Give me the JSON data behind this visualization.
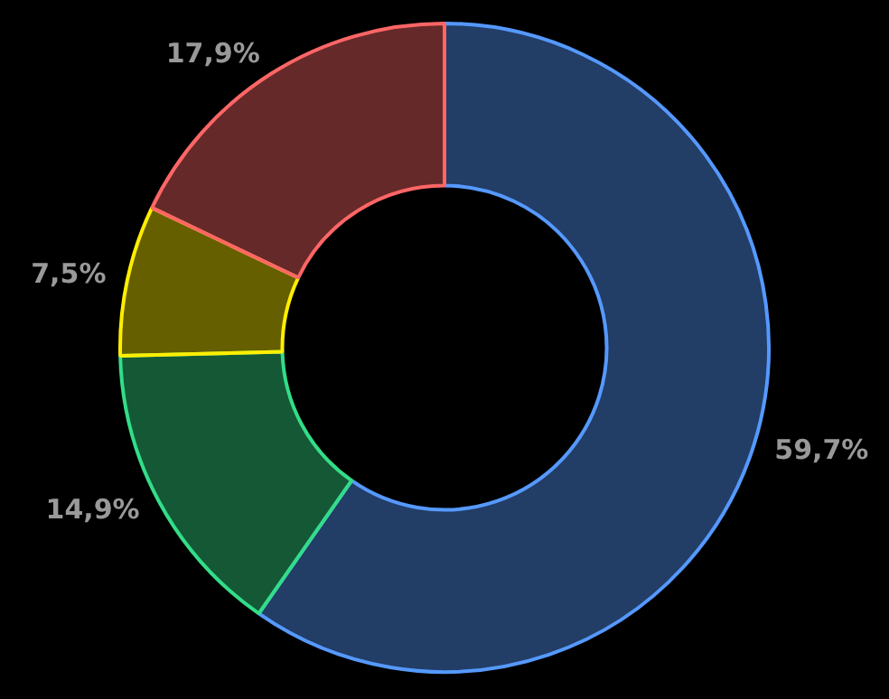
{
  "chart_data": {
    "type": "donut",
    "categories": [
      null,
      null,
      null,
      null
    ],
    "values": [
      59.7,
      14.9,
      7.5,
      17.9
    ],
    "colors": [
      "#5599ff",
      "#33dd88",
      "#ffee00",
      "#ff6666"
    ],
    "value_labels": [
      "59,7%",
      "14,9%",
      "7,5%",
      "17,9%"
    ],
    "legend": false
  }
}
